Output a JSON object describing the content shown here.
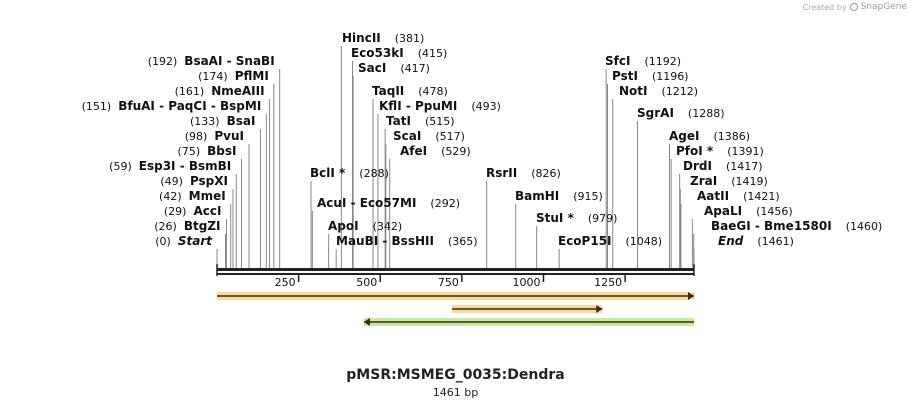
{
  "credit": {
    "prefix": "Created by",
    "brand": "SnapGene"
  },
  "plasmid": {
    "name": "pMSR:MSMEG_0035:Dendra",
    "length_label": "1461 bp",
    "length": 1461
  },
  "ticks": [
    "250",
    "500",
    "750",
    "1000",
    "1250"
  ],
  "sites": [
    {
      "name": "Start",
      "pos": 0,
      "label": "(0)",
      "italic": true
    },
    {
      "name": "BtgZI",
      "pos": 26,
      "label": "(26)"
    },
    {
      "name": "AccI",
      "pos": 29,
      "label": "(29)"
    },
    {
      "name": "MmeI",
      "pos": 42,
      "label": "(42)"
    },
    {
      "name": "PspXI",
      "pos": 49,
      "label": "(49)"
    },
    {
      "name": "Esp3I  - BsmBI",
      "pos": 59,
      "label": "(59)"
    },
    {
      "name": "BbsI",
      "pos": 75,
      "label": "(75)"
    },
    {
      "name": "PvuI",
      "pos": 98,
      "label": "(98)"
    },
    {
      "name": "BsaI",
      "pos": 133,
      "label": "(133)"
    },
    {
      "name": "BfuAI  - PaqCI  - BspMI",
      "pos": 151,
      "label": "(151)"
    },
    {
      "name": "NmeAIII",
      "pos": 161,
      "label": "(161)"
    },
    {
      "name": "PflMI",
      "pos": 174,
      "label": "(174)"
    },
    {
      "name": "BsaAI  - SnaBI",
      "pos": 192,
      "label": "(192)"
    },
    {
      "name": "BclI *",
      "pos": 288,
      "label": "(288)"
    },
    {
      "name": "AcuI  - Eco57MI",
      "pos": 292,
      "label": "(292)"
    },
    {
      "name": "ApoI",
      "pos": 342,
      "label": "(342)"
    },
    {
      "name": "MauBI  - BssHII",
      "pos": 365,
      "label": "(365)"
    },
    {
      "name": "HincII",
      "pos": 381,
      "label": "(381)"
    },
    {
      "name": "Eco53kI",
      "pos": 415,
      "label": "(415)"
    },
    {
      "name": "SacI",
      "pos": 417,
      "label": "(417)"
    },
    {
      "name": "TaqII",
      "pos": 478,
      "label": "(478)"
    },
    {
      "name": "KflI  - PpuMI",
      "pos": 493,
      "label": "(493)"
    },
    {
      "name": "TatI",
      "pos": 515,
      "label": "(515)"
    },
    {
      "name": "ScaI",
      "pos": 517,
      "label": "(517)"
    },
    {
      "name": "AfeI",
      "pos": 529,
      "label": "(529)"
    },
    {
      "name": "RsrII",
      "pos": 826,
      "label": "(826)"
    },
    {
      "name": "BamHI",
      "pos": 915,
      "label": "(915)"
    },
    {
      "name": "StuI *",
      "pos": 979,
      "label": "(979)"
    },
    {
      "name": "EcoP15I",
      "pos": 1048,
      "label": "(1048)"
    },
    {
      "name": "SfcI",
      "pos": 1192,
      "label": "(1192)"
    },
    {
      "name": "PstI",
      "pos": 1196,
      "label": "(1196)"
    },
    {
      "name": "NotI",
      "pos": 1212,
      "label": "(1212)"
    },
    {
      "name": "SgrAI",
      "pos": 1288,
      "label": "(1288)"
    },
    {
      "name": "AgeI",
      "pos": 1386,
      "label": "(1386)"
    },
    {
      "name": "PfoI *",
      "pos": 1391,
      "label": "(1391)"
    },
    {
      "name": "DrdI",
      "pos": 1417,
      "label": "(1417)"
    },
    {
      "name": "ZraI",
      "pos": 1419,
      "label": "(1419)"
    },
    {
      "name": "AatII",
      "pos": 1421,
      "label": "(1421)"
    },
    {
      "name": "ApaLI",
      "pos": 1456,
      "label": "(1456)"
    },
    {
      "name": "BaeGI  - Bme1580I",
      "pos": 1460,
      "label": "(1460)"
    },
    {
      "name": "End",
      "pos": 1461,
      "label": "(1461)",
      "italic": true
    }
  ],
  "features": [
    {
      "start": 0,
      "end": 1461,
      "direction": "forward",
      "color": "#f5a623"
    },
    {
      "start": 720,
      "end": 1180,
      "direction": "forward",
      "color": "#f5a623"
    },
    {
      "start": 450,
      "end": 1461,
      "direction": "reverse",
      "color": "#7ed321"
    }
  ]
}
